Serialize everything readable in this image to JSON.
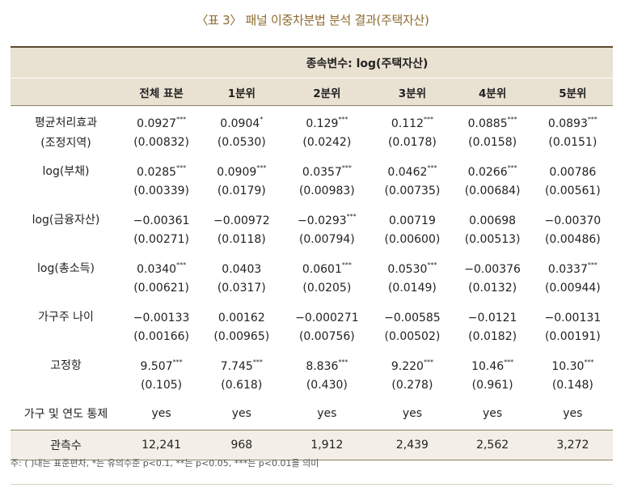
{
  "title": "〈표 3〉 패널 이중차분법 분석 결과(주택자산)",
  "header": {
    "dependent_var": "종속변수: log(주택자산)",
    "columns": [
      "전체 표본",
      "1분위",
      "2분위",
      "3분위",
      "4분위",
      "5분위"
    ]
  },
  "rows": [
    {
      "label1": "평균처리효과",
      "label2": "(조정지역)",
      "coef": [
        [
          "0.0927",
          "***"
        ],
        [
          "0.0904",
          "*"
        ],
        [
          "0.129",
          "***"
        ],
        [
          "0.112",
          "***"
        ],
        [
          "0.0885",
          "***"
        ],
        [
          "0.0893",
          "***"
        ]
      ],
      "se": [
        "(0.00832)",
        "(0.0530)",
        "(0.0242)",
        "(0.0178)",
        "(0.0158)",
        "(0.0151)"
      ]
    },
    {
      "label1": "log(부채)",
      "label2": "",
      "coef": [
        [
          "0.0285",
          "***"
        ],
        [
          "0.0909",
          "***"
        ],
        [
          "0.0357",
          "***"
        ],
        [
          "0.0462",
          "***"
        ],
        [
          "0.0266",
          "***"
        ],
        [
          "0.00786",
          ""
        ]
      ],
      "se": [
        "(0.00339)",
        "(0.0179)",
        "(0.00983)",
        "(0.00735)",
        "(0.00684)",
        "(0.00561)"
      ]
    },
    {
      "label1": "log(금융자산)",
      "label2": "",
      "coef": [
        [
          "−0.00361",
          ""
        ],
        [
          "−0.00972",
          ""
        ],
        [
          "−0.0293",
          "***"
        ],
        [
          "0.00719",
          ""
        ],
        [
          "0.00698",
          ""
        ],
        [
          "−0.00370",
          ""
        ]
      ],
      "se": [
        "(0.00271)",
        "(0.0118)",
        "(0.00794)",
        "(0.00600)",
        "(0.00513)",
        "(0.00486)"
      ]
    },
    {
      "label1": "log(총소득)",
      "label2": "",
      "coef": [
        [
          "0.0340",
          "***"
        ],
        [
          "0.0403",
          ""
        ],
        [
          "0.0601",
          "***"
        ],
        [
          "0.0530",
          "***"
        ],
        [
          "−0.00376",
          ""
        ],
        [
          "0.0337",
          "***"
        ]
      ],
      "se": [
        "(0.00621)",
        "(0.0317)",
        "(0.0205)",
        "(0.0149)",
        "(0.0132)",
        "(0.00944)"
      ]
    },
    {
      "label1": "가구주 나이",
      "label2": "",
      "coef": [
        [
          "−0.00133",
          ""
        ],
        [
          "0.00162",
          ""
        ],
        [
          "−0.000271",
          ""
        ],
        [
          "−0.00585",
          ""
        ],
        [
          "−0.0121",
          ""
        ],
        [
          "−0.00131",
          ""
        ]
      ],
      "se": [
        "(0.00166)",
        "(0.00965)",
        "(0.00756)",
        "(0.00502)",
        "(0.0182)",
        "(0.00191)"
      ]
    },
    {
      "label1": "고정항",
      "label2": "",
      "coef": [
        [
          "9.507",
          "***"
        ],
        [
          "7.745",
          "***"
        ],
        [
          "8.836",
          "***"
        ],
        [
          "9.220",
          "***"
        ],
        [
          "10.46",
          "***"
        ],
        [
          "10.30",
          "***"
        ]
      ],
      "se": [
        "(0.105)",
        "(0.618)",
        "(0.430)",
        "(0.278)",
        "(0.961)",
        "(0.148)"
      ]
    }
  ],
  "fixed_effects": {
    "label": "가구 및 연도 통제",
    "values": [
      "yes",
      "yes",
      "yes",
      "yes",
      "yes",
      "yes"
    ]
  },
  "observations": {
    "label": "관측수",
    "values": [
      "12,241",
      "968",
      "1,912",
      "2,439",
      "2,562",
      "3,272"
    ]
  },
  "note": "주: ( )내는 표준편차, *는 유의수준 p<0.1, **는 p<0.05, ***는 p<0.01을 의미",
  "colors": {
    "title": "#8c6a2e",
    "header_bg": "#e9e1d1",
    "rule": "#5a4a30"
  }
}
